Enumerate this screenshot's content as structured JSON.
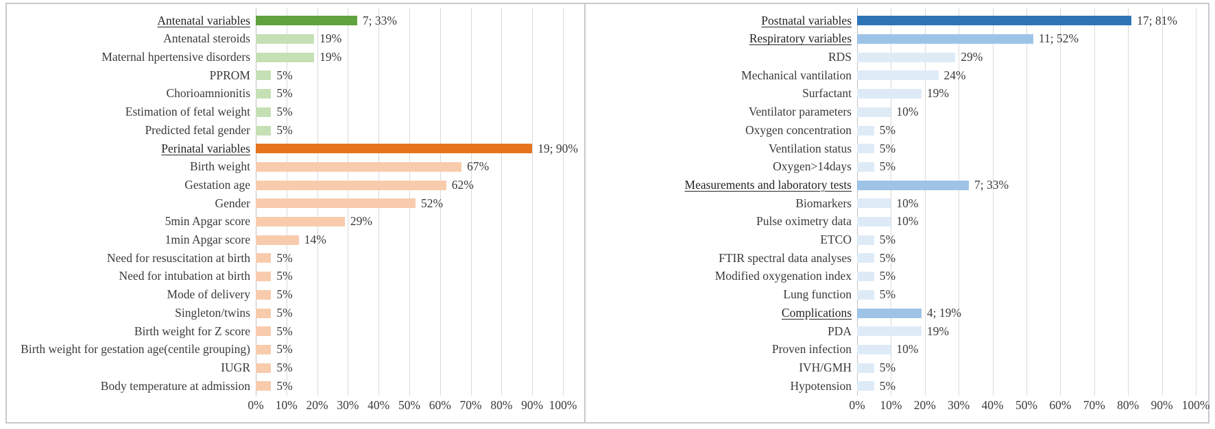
{
  "colors": {
    "green_dark": "#5FA23E",
    "green_light": "#C5E0B4",
    "orange_dark": "#E6731E",
    "orange_light": "#F8CBAD",
    "blue_dark": "#2E75B6",
    "blue_medium": "#9DC3E6",
    "blue_light": "#DEEBF7",
    "gridline": "#D9D9D9",
    "axis_line": "#BFBFBF",
    "text": "#3A3A3A",
    "frame_border": "#C9C9C9"
  },
  "chart_data": [
    {
      "id": "antenatal-perinatal-panel",
      "type": "bar",
      "orientation": "horizontal",
      "title": "",
      "xlabel": "",
      "ylabel": "",
      "xlim": [
        0,
        100
      ],
      "grid": true,
      "x_tick_labels": [
        "0%",
        "10%",
        "20%",
        "30%",
        "40%",
        "50%",
        "60%",
        "70%",
        "80%",
        "90%",
        "100%"
      ],
      "rows": [
        {
          "label": "Antenatal variables",
          "value": 33,
          "display": "7; 33%",
          "color": "green_dark",
          "section_header": true
        },
        {
          "label": "Antenatal steroids",
          "value": 19,
          "display": "19%",
          "color": "green_light",
          "section_header": false
        },
        {
          "label": "Maternal hpertensive disorders",
          "value": 19,
          "display": "19%",
          "color": "green_light",
          "section_header": false
        },
        {
          "label": "PPROM",
          "value": 5,
          "display": "5%",
          "color": "green_light",
          "section_header": false
        },
        {
          "label": "Chorioamnionitis",
          "value": 5,
          "display": "5%",
          "color": "green_light",
          "section_header": false
        },
        {
          "label": "Estimation of fetal weight",
          "value": 5,
          "display": "5%",
          "color": "green_light",
          "section_header": false
        },
        {
          "label": "Predicted fetal gender",
          "value": 5,
          "display": "5%",
          "color": "green_light",
          "section_header": false
        },
        {
          "label": "Perinatal variables",
          "value": 90,
          "display": "19; 90%",
          "color": "orange_dark",
          "section_header": true
        },
        {
          "label": "Birth weight",
          "value": 67,
          "display": "67%",
          "color": "orange_light",
          "section_header": false
        },
        {
          "label": "Gestation age",
          "value": 62,
          "display": "62%",
          "color": "orange_light",
          "section_header": false
        },
        {
          "label": "Gender",
          "value": 52,
          "display": "52%",
          "color": "orange_light",
          "section_header": false
        },
        {
          "label": "5min Apgar score",
          "value": 29,
          "display": "29%",
          "color": "orange_light",
          "section_header": false
        },
        {
          "label": "1min Apgar score",
          "value": 14,
          "display": "14%",
          "color": "orange_light",
          "section_header": false
        },
        {
          "label": "Need for resuscitation at birth",
          "value": 5,
          "display": "5%",
          "color": "orange_light",
          "section_header": false
        },
        {
          "label": "Need for intubation at birth",
          "value": 5,
          "display": "5%",
          "color": "orange_light",
          "section_header": false
        },
        {
          "label": "Mode of delivery",
          "value": 5,
          "display": "5%",
          "color": "orange_light",
          "section_header": false
        },
        {
          "label": "Singleton/twins",
          "value": 5,
          "display": "5%",
          "color": "orange_light",
          "section_header": false
        },
        {
          "label": "Birth weight for Z score",
          "value": 5,
          "display": "5%",
          "color": "orange_light",
          "section_header": false
        },
        {
          "label": "Birth weight for gestation age(centile grouping)",
          "value": 5,
          "display": "5%",
          "color": "orange_light",
          "section_header": false
        },
        {
          "label": "IUGR",
          "value": 5,
          "display": "5%",
          "color": "orange_light",
          "section_header": false
        },
        {
          "label": "Body temperature at admission",
          "value": 5,
          "display": "5%",
          "color": "orange_light",
          "section_header": false
        }
      ]
    },
    {
      "id": "postnatal-panel",
      "type": "bar",
      "orientation": "horizontal",
      "title": "",
      "xlabel": "",
      "ylabel": "",
      "xlim": [
        0,
        100
      ],
      "grid": true,
      "x_tick_labels": [
        "0%",
        "10%",
        "20%",
        "30%",
        "40%",
        "50%",
        "60%",
        "70%",
        "80%",
        "90%",
        "100%"
      ],
      "rows": [
        {
          "label": "Postnatal variables",
          "value": 81,
          "display": "17; 81%",
          "color": "blue_dark",
          "section_header": true
        },
        {
          "label": "Respiratory variables",
          "value": 52,
          "display": "11; 52%",
          "color": "blue_medium",
          "section_header": true
        },
        {
          "label": "RDS",
          "value": 29,
          "display": "29%",
          "color": "blue_light",
          "section_header": false
        },
        {
          "label": "Mechanical vantilation",
          "value": 24,
          "display": "24%",
          "color": "blue_light",
          "section_header": false
        },
        {
          "label": "Surfactant",
          "value": 19,
          "display": "19%",
          "color": "blue_light",
          "section_header": false
        },
        {
          "label": "Ventilator parameters",
          "value": 10,
          "display": "10%",
          "color": "blue_light",
          "section_header": false
        },
        {
          "label": "Oxygen concentration",
          "value": 5,
          "display": "5%",
          "color": "blue_light",
          "section_header": false
        },
        {
          "label": "Ventilation status",
          "value": 5,
          "display": "5%",
          "color": "blue_light",
          "section_header": false
        },
        {
          "label": "Oxygen>14days",
          "value": 5,
          "display": "5%",
          "color": "blue_light",
          "section_header": false
        },
        {
          "label": "Measurements and laboratory tests",
          "value": 33,
          "display": "7; 33%",
          "color": "blue_medium",
          "section_header": true
        },
        {
          "label": "Biomarkers",
          "value": 10,
          "display": "10%",
          "color": "blue_light",
          "section_header": false
        },
        {
          "label": "Pulse oximetry data",
          "value": 10,
          "display": "10%",
          "color": "blue_light",
          "section_header": false
        },
        {
          "label": "ETCO",
          "value": 5,
          "display": "5%",
          "color": "blue_light",
          "section_header": false
        },
        {
          "label": "FTIR spectral data analyses",
          "value": 5,
          "display": "5%",
          "color": "blue_light",
          "section_header": false
        },
        {
          "label": "Modified oxygenation index",
          "value": 5,
          "display": "5%",
          "color": "blue_light",
          "section_header": false
        },
        {
          "label": "Lung function",
          "value": 5,
          "display": "5%",
          "color": "blue_light",
          "section_header": false
        },
        {
          "label": "Complications",
          "value": 19,
          "display": "4; 19%",
          "color": "blue_medium",
          "section_header": true
        },
        {
          "label": "PDA",
          "value": 19,
          "display": "19%",
          "color": "blue_light",
          "section_header": false
        },
        {
          "label": "Proven infection",
          "value": 10,
          "display": "10%",
          "color": "blue_light",
          "section_header": false
        },
        {
          "label": "IVH/GMH",
          "value": 5,
          "display": "5%",
          "color": "blue_light",
          "section_header": false
        },
        {
          "label": "Hypotension",
          "value": 5,
          "display": "5%",
          "color": "blue_light",
          "section_header": false
        }
      ]
    }
  ]
}
